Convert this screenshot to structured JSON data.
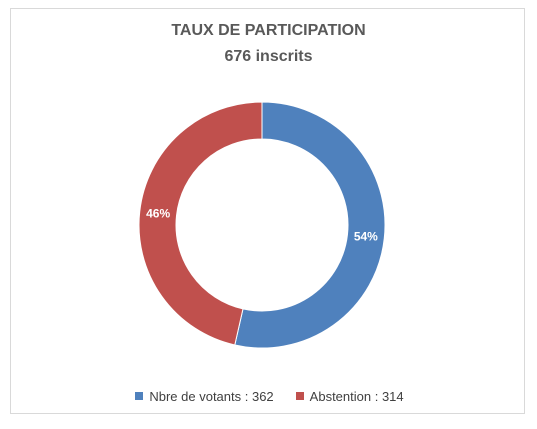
{
  "chart_data": {
    "type": "pie",
    "subtype": "donut",
    "title": "TAUX DE PARTICIPATION",
    "subtitle": "676 inscrits",
    "series": [
      {
        "name": "",
        "values": [
          {
            "label": "Nbre de votants",
            "value": 362,
            "percent_label": "54%",
            "color": "#4f81bd"
          },
          {
            "label": "Abstention",
            "value": 314,
            "percent_label": "46%",
            "color": "#c0504d"
          }
        ]
      }
    ],
    "legend": {
      "position": "bottom",
      "entries": [
        "Nbre de votants : 362",
        "Abstention :  314"
      ]
    }
  }
}
